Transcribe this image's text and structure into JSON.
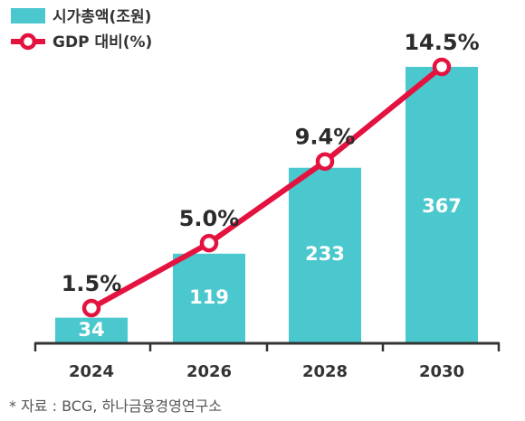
{
  "legend": {
    "bar_label": "시가총액(조원)",
    "line_label": "GDP 대비(%)"
  },
  "source": "* 자료 : BCG, 하나금융경영연구소",
  "colors": {
    "bar": "#4ac8cd",
    "line": "#e4123f",
    "axis": "#333333"
  },
  "chart_data": {
    "type": "bar",
    "categories": [
      "2024",
      "2026",
      "2028",
      "2030"
    ],
    "series": [
      {
        "name": "시가총액(조원)",
        "type": "bar",
        "values": [
          34,
          119,
          233,
          367
        ],
        "labels": [
          "34",
          "119",
          "233",
          "367"
        ]
      },
      {
        "name": "GDP 대비(%)",
        "type": "line",
        "values": [
          1.5,
          5.0,
          9.4,
          14.5
        ],
        "labels": [
          "1.5%",
          "5.0%",
          "9.4%",
          "14.5%"
        ]
      }
    ],
    "xlabel": "",
    "ylabel": "",
    "grid": false,
    "legend_position": "top-left"
  }
}
